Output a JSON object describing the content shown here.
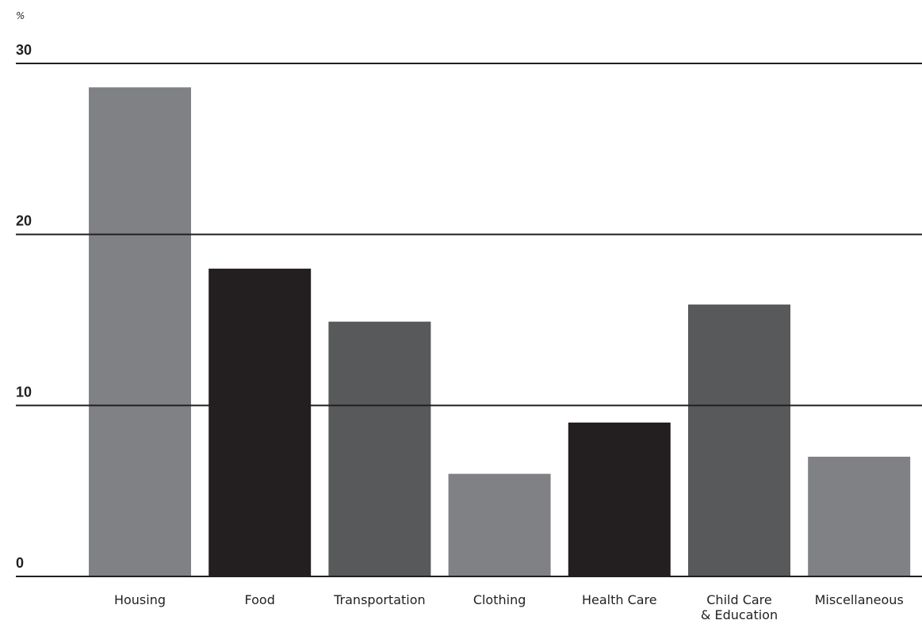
{
  "chart_data": {
    "type": "bar",
    "title": "",
    "xlabel": "",
    "ylabel": "%",
    "ylim": [
      0,
      30
    ],
    "yticks": [
      0,
      10,
      20,
      30
    ],
    "grid": true,
    "legend": "none",
    "categories": [
      [
        "Housing"
      ],
      [
        "Food"
      ],
      [
        "Transportation"
      ],
      [
        "Clothing"
      ],
      [
        "Health Care"
      ],
      [
        "Child Care",
        "& Education"
      ],
      [
        "Miscellaneous"
      ]
    ],
    "values": [
      28.6,
      18.0,
      14.9,
      6.0,
      9.0,
      15.9,
      7.0
    ],
    "bar_colors": [
      "#808184",
      "#231f20",
      "#58595b",
      "#808184",
      "#231f20",
      "#58595b",
      "#808184"
    ],
    "gridline_color": "#231f20",
    "text_color": "#231f20"
  }
}
